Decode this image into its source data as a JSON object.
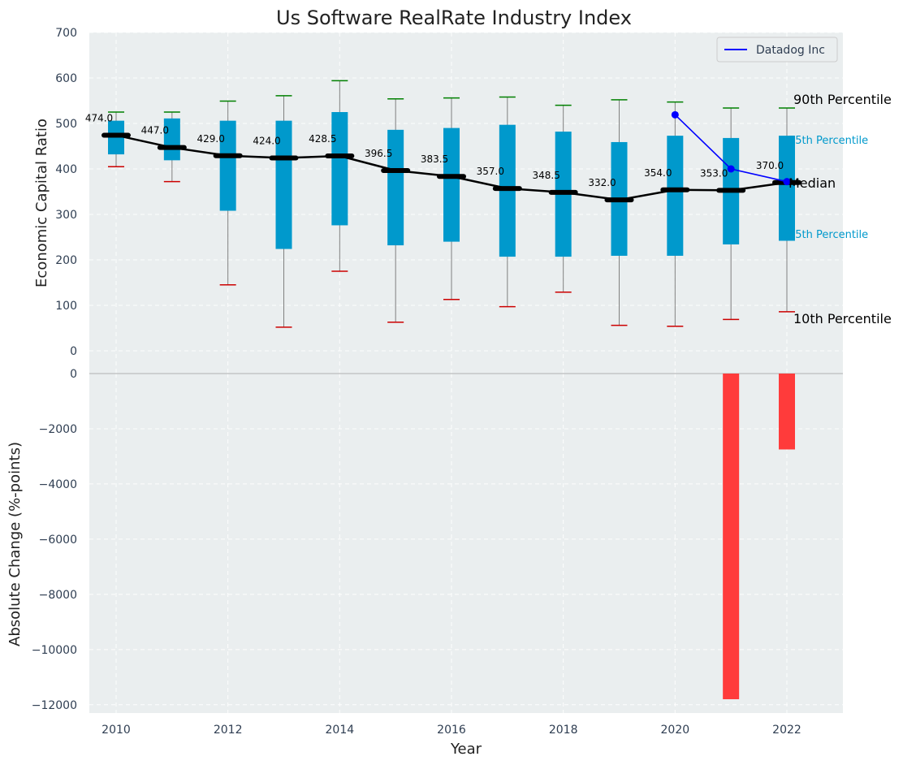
{
  "chart_data": [
    {
      "type": "box",
      "title": "Us Software RealRate Industry Index",
      "xlabel": "",
      "ylabel": "Economic Capital Ratio",
      "ylim": [
        0,
        700
      ],
      "yticks": [
        0,
        100,
        200,
        300,
        400,
        500,
        600,
        700
      ],
      "grid": true,
      "legend": {
        "position": "top-right",
        "entries": [
          "Datadog Inc"
        ]
      },
      "x": [
        2010,
        2011,
        2012,
        2013,
        2014,
        2015,
        2016,
        2017,
        2018,
        2019,
        2020,
        2021,
        2022
      ],
      "p10": [
        405,
        372,
        145,
        52,
        175,
        63,
        113,
        97,
        129,
        56,
        54,
        69,
        86
      ],
      "q25": [
        432,
        419,
        308,
        224,
        276,
        232,
        240,
        207,
        207,
        209,
        209,
        234,
        242
      ],
      "median": [
        474.0,
        447.0,
        429.0,
        424.0,
        428.5,
        396.5,
        383.5,
        357.0,
        348.5,
        332.0,
        354.0,
        353.0,
        370.0
      ],
      "median_labels": [
        "474.0",
        "447.0",
        "429.0",
        "424.0",
        "428.5",
        "396.5",
        "383.5",
        "357.0",
        "348.5",
        "332.0",
        "354.0",
        "353.0",
        "370.0"
      ],
      "q75": [
        506,
        511,
        506,
        506,
        525,
        486,
        490,
        497,
        482,
        459,
        473,
        468,
        473
      ],
      "p90": [
        525,
        525,
        549,
        561,
        594,
        554,
        556,
        558,
        540,
        552,
        547,
        534,
        534
      ],
      "series": [
        {
          "name": "Datadog Inc",
          "x": [
            2020,
            2021,
            2022
          ],
          "values": [
            519,
            400,
            372
          ],
          "color": "#0000ff"
        }
      ],
      "annotations": {
        "p90": "90th Percentile",
        "q75": "75th Percentile",
        "median": "Median",
        "q25": "25th Percentile",
        "p10": "10th Percentile"
      },
      "colors": {
        "box": "#0099cc",
        "whisker": "#808080",
        "cap_top": "#008000",
        "cap_bottom": "#cc0000",
        "median_line": "#000000",
        "background": "#eaeeef"
      }
    },
    {
      "type": "bar",
      "title": "",
      "xlabel": "Year",
      "ylabel": "Absolute Change (%-points)",
      "ylim": [
        -12300,
        0
      ],
      "yticks": [
        0,
        -2000,
        -4000,
        -6000,
        -8000,
        -10000,
        -12000
      ],
      "ytick_labels": [
        "0",
        "−2000",
        "−4000",
        "−6000",
        "−8000",
        "−10000",
        "−12000"
      ],
      "xticks": [
        2010,
        2012,
        2014,
        2016,
        2018,
        2020,
        2022
      ],
      "xlim": [
        2009.5,
        2023
      ],
      "grid": true,
      "x": [
        2021,
        2022
      ],
      "values": [
        -11800,
        -2750
      ],
      "colors": {
        "bar": "#ff3b3b"
      }
    }
  ]
}
